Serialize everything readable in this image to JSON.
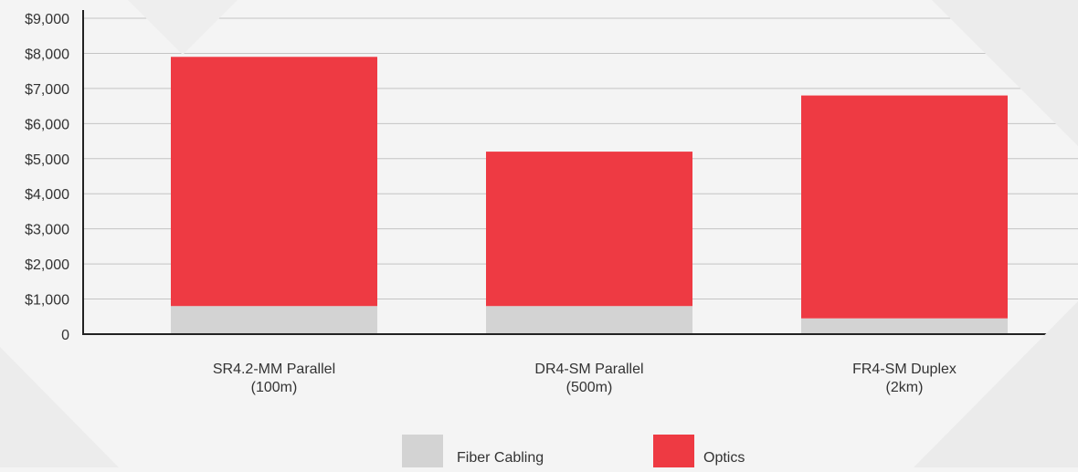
{
  "colors": {
    "fiber_cabling": "#d3d3d3",
    "optics": "#ee3a43",
    "axis": "#222222",
    "grid": "#c4c4c4"
  },
  "chart_data": {
    "type": "bar",
    "stacked": true,
    "categories": [
      [
        "SR4.2-MM Parallel",
        "(100m)"
      ],
      [
        "DR4-SM Parallel",
        "(500m)"
      ],
      [
        "FR4-SM Duplex",
        "(2km)"
      ]
    ],
    "series": [
      {
        "name": "Fiber Cabling",
        "color": "#d3d3d3",
        "values": [
          800,
          800,
          450
        ]
      },
      {
        "name": "Optics",
        "color": "#ee3a43",
        "values": [
          7100,
          4400,
          6350
        ]
      }
    ],
    "yticks": [
      "0",
      "$1,000",
      "$2,000",
      "$3,000",
      "$4,000",
      "$5,000",
      "$6,000",
      "$7,000",
      "$8,000",
      "$9,000"
    ],
    "ylim": [
      0,
      9000
    ],
    "grid": true,
    "legend_position": "bottom-center"
  }
}
